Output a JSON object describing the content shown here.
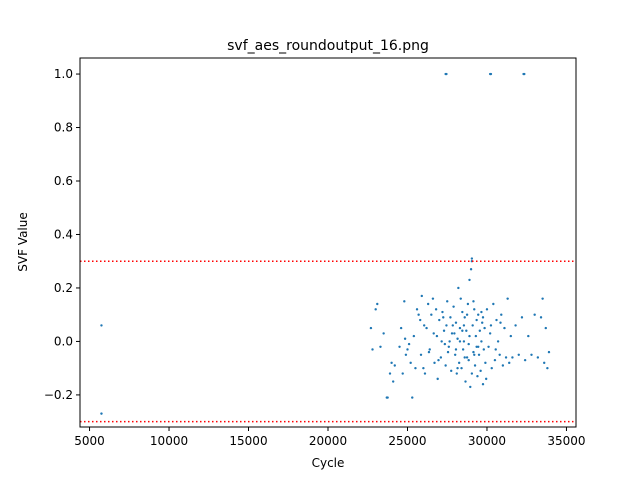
{
  "chart_data": {
    "type": "scatter",
    "title": "svf_aes_roundoutput_16.png",
    "xlabel": "Cycle",
    "ylabel": "SVF Value",
    "xlim": [
      4400,
      35600
    ],
    "ylim": [
      -0.32,
      1.06
    ],
    "xticks": [
      5000,
      10000,
      15000,
      20000,
      25000,
      30000,
      35000
    ],
    "xtick_labels": [
      "5000",
      "10000",
      "15000",
      "20000",
      "25000",
      "30000",
      "35000"
    ],
    "yticks": [
      -0.2,
      0.0,
      0.2,
      0.4,
      0.6,
      0.8,
      1.0
    ],
    "ytick_labels": [
      "−0.2",
      "0.0",
      "0.2",
      "0.4",
      "0.6",
      "0.8",
      "1.0"
    ],
    "thresholds": [
      0.3,
      -0.3
    ],
    "colors": {
      "points": "#1f77b4",
      "threshold": "#ff0000"
    },
    "grid": false,
    "points": [
      [
        5750,
        0.06
      ],
      [
        5750,
        -0.27
      ],
      [
        27400,
        1.0
      ],
      [
        27450,
        1.0
      ],
      [
        30200,
        1.0
      ],
      [
        30250,
        1.0
      ],
      [
        32300,
        1.0
      ],
      [
        32350,
        1.0
      ],
      [
        22700,
        0.05
      ],
      [
        22800,
        -0.03
      ],
      [
        23000,
        0.12
      ],
      [
        23100,
        0.14
      ],
      [
        23300,
        -0.02
      ],
      [
        23500,
        0.03
      ],
      [
        23700,
        -0.21
      ],
      [
        23750,
        -0.21
      ],
      [
        23900,
        -0.12
      ],
      [
        24000,
        -0.08
      ],
      [
        24100,
        -0.15
      ],
      [
        24200,
        -0.09
      ],
      [
        24500,
        -0.02
      ],
      [
        24600,
        0.05
      ],
      [
        24700,
        -0.12
      ],
      [
        24800,
        0.15
      ],
      [
        24850,
        0.01
      ],
      [
        24900,
        -0.05
      ],
      [
        25000,
        -0.03
      ],
      [
        25100,
        -0.01
      ],
      [
        25200,
        -0.08
      ],
      [
        25300,
        -0.21
      ],
      [
        25400,
        0.02
      ],
      [
        25500,
        -0.1
      ],
      [
        25600,
        0.12
      ],
      [
        25700,
        0.1
      ],
      [
        25800,
        0.08
      ],
      [
        25850,
        -0.05
      ],
      [
        25900,
        0.17
      ],
      [
        26000,
        -0.1
      ],
      [
        26100,
        -0.12
      ],
      [
        26200,
        0.05
      ],
      [
        26300,
        0.14
      ],
      [
        26400,
        -0.03
      ],
      [
        26500,
        0.1
      ],
      [
        26600,
        0.16
      ],
      [
        26700,
        -0.08
      ],
      [
        26800,
        0.12
      ],
      [
        26850,
        0.02
      ],
      [
        26900,
        -0.14
      ],
      [
        27000,
        0.08
      ],
      [
        27100,
        -0.06
      ],
      [
        27150,
        0.0
      ],
      [
        27200,
        0.11
      ],
      [
        27300,
        0.04
      ],
      [
        27400,
        -0.09
      ],
      [
        27450,
        0.06
      ],
      [
        27500,
        0.15
      ],
      [
        27600,
        -0.02
      ],
      [
        27700,
        0.09
      ],
      [
        27750,
        -0.11
      ],
      [
        27800,
        0.03
      ],
      [
        27900,
        0.13
      ],
      [
        28000,
        -0.05
      ],
      [
        28050,
        0.07
      ],
      [
        28100,
        -0.12
      ],
      [
        28150,
        0.01
      ],
      [
        28200,
        0.2
      ],
      [
        28250,
        -0.08
      ],
      [
        28300,
        0.05
      ],
      [
        28350,
        0.16
      ],
      [
        28400,
        -0.1
      ],
      [
        28450,
        0.11
      ],
      [
        28500,
        -0.03
      ],
      [
        28550,
        0.0
      ],
      [
        28600,
        0.09
      ],
      [
        28650,
        -0.15
      ],
      [
        28700,
        0.04
      ],
      [
        28750,
        -0.06
      ],
      [
        28800,
        0.14
      ],
      [
        28850,
        -0.01
      ],
      [
        28900,
        0.23
      ],
      [
        28950,
        -0.17
      ],
      [
        29000,
        0.27
      ],
      [
        29050,
        0.3
      ],
      [
        29050,
        0.31
      ],
      [
        29100,
        0.06
      ],
      [
        29150,
        -0.04
      ],
      [
        29200,
        0.12
      ],
      [
        29250,
        -0.09
      ],
      [
        29300,
        0.02
      ],
      [
        29350,
        0.08
      ],
      [
        29400,
        -0.13
      ],
      [
        29450,
        0.1
      ],
      [
        29500,
        -0.05
      ],
      [
        29550,
        0.04
      ],
      [
        29600,
        -0.11
      ],
      [
        29650,
        0.0
      ],
      [
        29700,
        0.07
      ],
      [
        29750,
        -0.16
      ],
      [
        29800,
        -0.03
      ],
      [
        29850,
        0.05
      ],
      [
        29900,
        -0.08
      ],
      [
        30000,
        0.12
      ],
      [
        30100,
        -0.02
      ],
      [
        30200,
        0.03
      ],
      [
        30300,
        -0.1
      ],
      [
        30400,
        0.14
      ],
      [
        30500,
        -0.07
      ],
      [
        30600,
        0.08
      ],
      [
        30700,
        0.0
      ],
      [
        30800,
        -0.05
      ],
      [
        30900,
        0.1
      ],
      [
        31000,
        -0.09
      ],
      [
        31100,
        0.05
      ],
      [
        31200,
        -0.06
      ],
      [
        31300,
        0.16
      ],
      [
        31400,
        -0.08
      ],
      [
        31500,
        0.02
      ],
      [
        31600,
        -0.06
      ],
      [
        31800,
        0.06
      ],
      [
        32000,
        -0.05
      ],
      [
        32200,
        0.09
      ],
      [
        32400,
        -0.07
      ],
      [
        32600,
        0.02
      ],
      [
        32800,
        -0.05
      ],
      [
        33000,
        0.1
      ],
      [
        33200,
        -0.06
      ],
      [
        33400,
        0.09
      ],
      [
        33500,
        0.16
      ],
      [
        33600,
        -0.08
      ],
      [
        33700,
        0.05
      ],
      [
        33800,
        -0.1
      ],
      [
        33900,
        -0.04
      ],
      [
        26050,
        0.06
      ],
      [
        26350,
        -0.04
      ],
      [
        26650,
        0.03
      ],
      [
        26950,
        -0.07
      ],
      [
        27250,
        0.09
      ],
      [
        27550,
        -0.04
      ],
      [
        27850,
        0.06
      ],
      [
        28150,
        -0.1
      ],
      [
        28450,
        0.04
      ],
      [
        28750,
        0.1
      ],
      [
        29050,
        -0.12
      ],
      [
        29350,
        -0.02
      ],
      [
        29650,
        0.11
      ],
      [
        29950,
        -0.14
      ],
      [
        30250,
        0.06
      ],
      [
        30550,
        -0.03
      ],
      [
        30850,
        0.07
      ],
      [
        27650,
        0.0
      ],
      [
        28050,
        -0.03
      ],
      [
        28550,
        0.06
      ],
      [
        28850,
        -0.07
      ],
      [
        29150,
        0.15
      ],
      [
        29450,
        -0.02
      ],
      [
        29750,
        0.09
      ],
      [
        28300,
        0.0
      ],
      [
        28600,
        -0.06
      ],
      [
        28900,
        0.02
      ],
      [
        29200,
        -0.05
      ],
      [
        27950,
        0.03
      ],
      [
        27350,
        -0.01
      ]
    ]
  }
}
